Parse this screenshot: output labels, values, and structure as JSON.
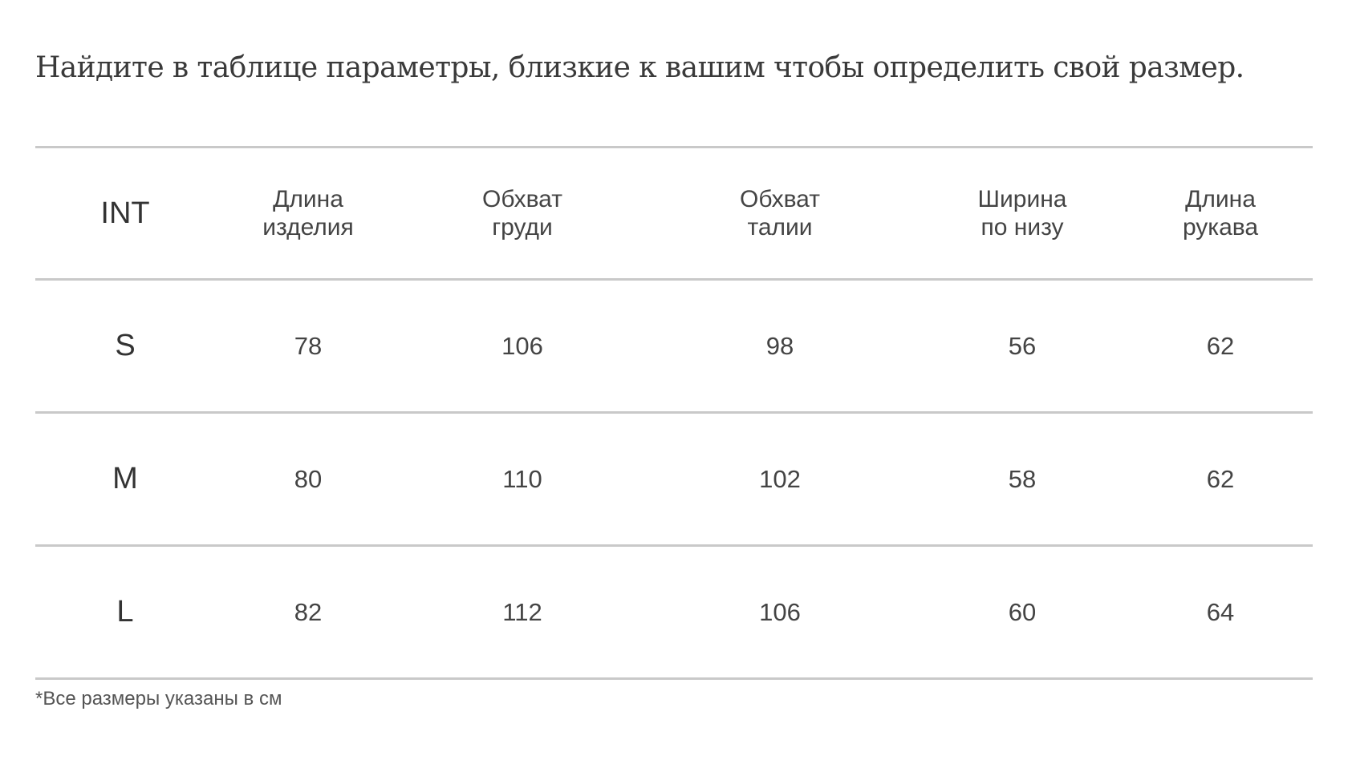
{
  "intro_text": "Найдите в таблице параметры, близкие к вашим чтобы определить свой размер.",
  "table": {
    "headers": [
      [
        "INT"
      ],
      [
        "Длина",
        "изделия"
      ],
      [
        "Обхват",
        "груди"
      ],
      [
        "Обхват",
        "талии"
      ],
      [
        "Ширина",
        "по низу"
      ],
      [
        "Длина",
        "рукава"
      ]
    ],
    "rows": [
      [
        "S",
        "78",
        "106",
        "98",
        "56",
        "62"
      ],
      [
        "M",
        "80",
        "110",
        "102",
        "58",
        "62"
      ],
      [
        "L",
        "82",
        "112",
        "106",
        "60",
        "64"
      ]
    ]
  },
  "footnote": "*Все размеры указаны в см",
  "colors": {
    "text": "#444444",
    "divider": "#c9c9c9"
  }
}
